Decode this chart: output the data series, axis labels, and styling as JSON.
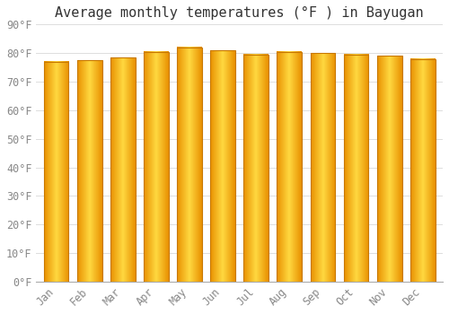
{
  "title": "Average monthly temperatures (°F ) in Bayugan",
  "months": [
    "Jan",
    "Feb",
    "Mar",
    "Apr",
    "May",
    "Jun",
    "Jul",
    "Aug",
    "Sep",
    "Oct",
    "Nov",
    "Dec"
  ],
  "values": [
    77.0,
    77.5,
    78.5,
    80.5,
    82.0,
    81.0,
    79.5,
    80.5,
    80.0,
    79.5,
    79.0,
    78.0
  ],
  "bar_color_left": "#E89000",
  "bar_color_center": "#FFD840",
  "bar_color_right": "#E89000",
  "ylim": [
    0,
    90
  ],
  "yticks": [
    0,
    10,
    20,
    30,
    40,
    50,
    60,
    70,
    80,
    90
  ],
  "ytick_labels": [
    "0°F",
    "10°F",
    "20°F",
    "30°F",
    "40°F",
    "50°F",
    "60°F",
    "70°F",
    "80°F",
    "90°F"
  ],
  "background_color": "#FFFFFF",
  "grid_color": "#DDDDDD",
  "title_fontsize": 11,
  "tick_fontsize": 8.5,
  "bar_edge_color": "#C87800",
  "font_family": "monospace",
  "bar_width": 0.75
}
